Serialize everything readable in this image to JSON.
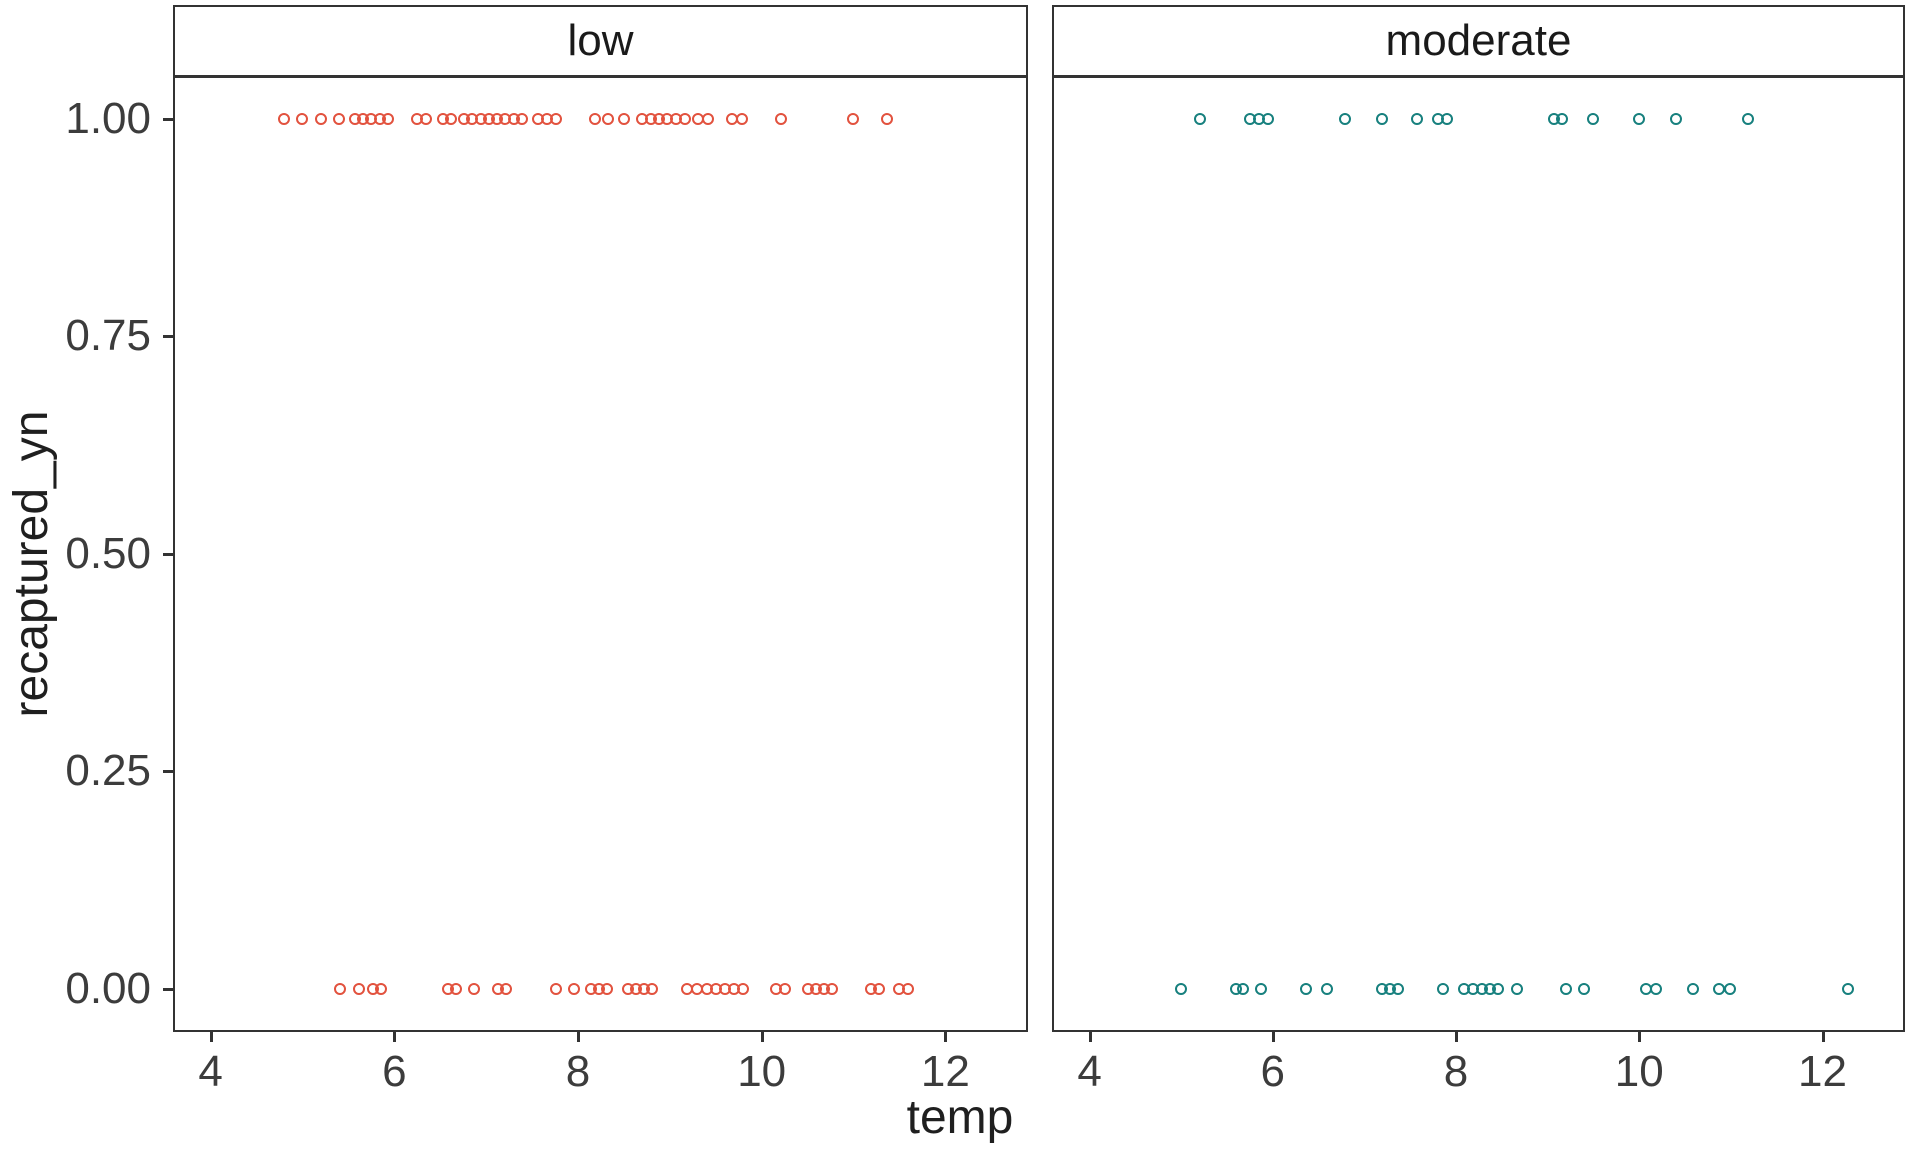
{
  "figure": {
    "kind": "faceted-scatter",
    "background": "#ffffff",
    "border_color": "#333333",
    "text_color": "#3c3c3c"
  },
  "chart_data": {
    "type": "scatter",
    "title": "",
    "xlabel": "temp",
    "ylabel": "recaptured_yn",
    "xlim": [
      3.59,
      12.9
    ],
    "ylim": [
      -0.05,
      1.05
    ],
    "grid": false,
    "legend": "none",
    "x_ticks": [
      4,
      6,
      8,
      10,
      12
    ],
    "y_ticks": [
      "1.00",
      "0.75",
      "0.50",
      "0.25",
      "0.00"
    ],
    "y_tick_values": [
      1.0,
      0.75,
      0.5,
      0.25,
      0.0
    ],
    "point_style": "open-circle",
    "facets": [
      {
        "label": "low",
        "color": "#E2523E",
        "points_y1": [
          4.8,
          5.0,
          5.2,
          5.4,
          5.57,
          5.66,
          5.75,
          5.84,
          5.93,
          6.25,
          6.34,
          6.53,
          6.62,
          6.76,
          6.85,
          6.94,
          7.03,
          7.12,
          7.21,
          7.3,
          7.39,
          7.56,
          7.66,
          7.76,
          8.18,
          8.33,
          8.5,
          8.7,
          8.79,
          8.88,
          8.97,
          9.07,
          9.16,
          9.31,
          9.42,
          9.68,
          9.79,
          10.21,
          10.99,
          11.37
        ],
        "points_y0": [
          5.41,
          5.61,
          5.77,
          5.86,
          6.58,
          6.67,
          6.87,
          7.13,
          7.22,
          7.76,
          7.96,
          8.14,
          8.23,
          8.32,
          8.54,
          8.63,
          8.72,
          8.81,
          9.19,
          9.3,
          9.4,
          9.5,
          9.6,
          9.7,
          9.8,
          10.16,
          10.25,
          10.5,
          10.59,
          10.68,
          10.77,
          11.19,
          11.28,
          11.5,
          11.59
        ]
      },
      {
        "label": "moderate",
        "color": "#17807E",
        "points_y1": [
          5.2,
          5.75,
          5.85,
          5.95,
          6.79,
          7.19,
          7.57,
          7.8,
          7.9,
          9.07,
          9.16,
          9.49,
          10.0,
          10.4,
          11.19
        ],
        "points_y0": [
          5.0,
          5.6,
          5.68,
          5.87,
          6.36,
          6.59,
          7.19,
          7.28,
          7.37,
          7.86,
          8.09,
          8.18,
          8.28,
          8.37,
          8.46,
          8.67,
          9.2,
          9.4,
          10.07,
          10.18,
          10.59,
          10.87,
          10.99,
          12.28
        ]
      }
    ]
  }
}
